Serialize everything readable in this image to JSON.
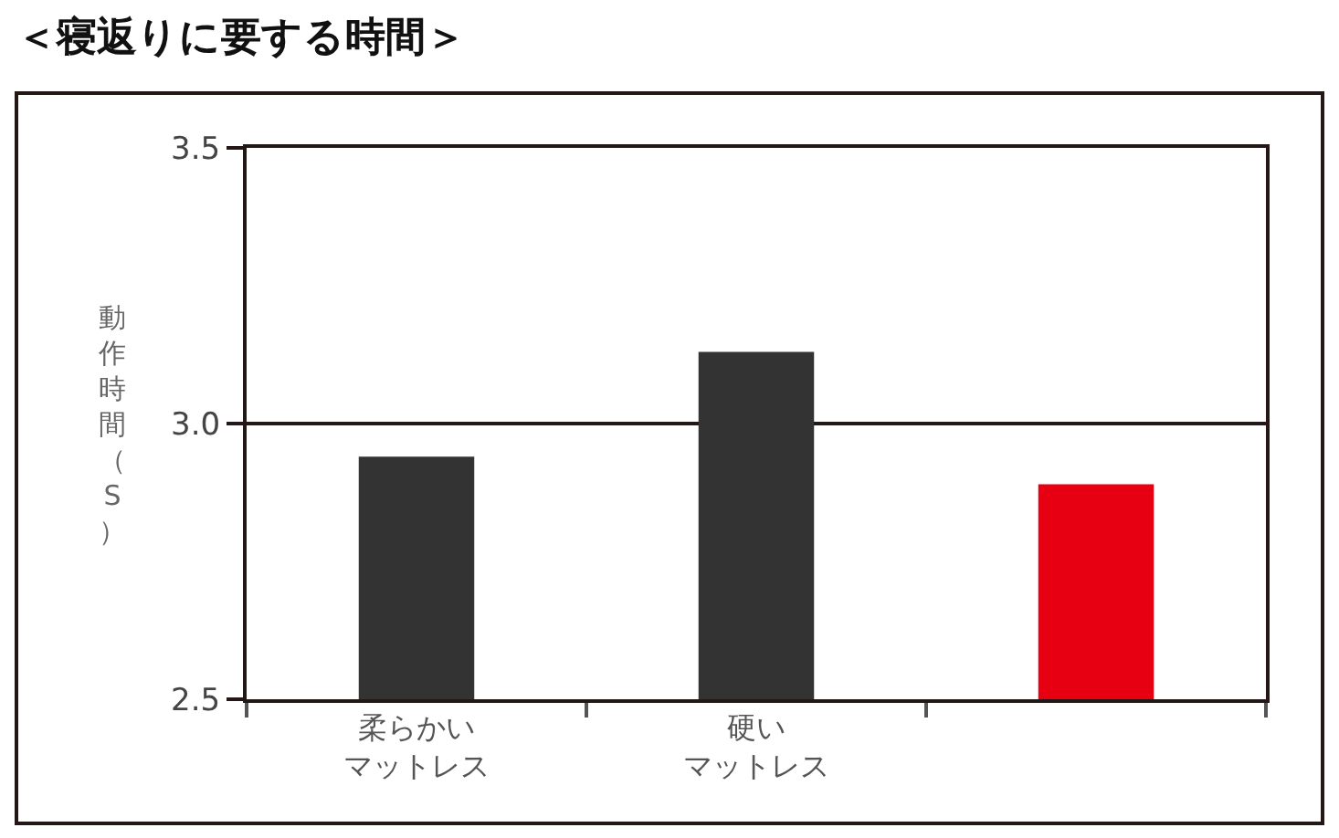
{
  "chart_data": {
    "type": "bar",
    "title": "＜寝返りに要する時間＞",
    "ylabel": "動作時間（S）",
    "categories": [
      "柔らかいマットレス",
      "硬いマットレス",
      null
    ],
    "values": [
      2.94,
      3.13,
      2.89
    ],
    "colors": [
      "#333333",
      "#333333",
      "#e60012"
    ],
    "ylim": [
      2.5,
      3.5
    ],
    "yticks": [
      2.5,
      {
        "value": 3,
        "label": "3.0"
      },
      3.5
    ],
    "grid": "y"
  }
}
